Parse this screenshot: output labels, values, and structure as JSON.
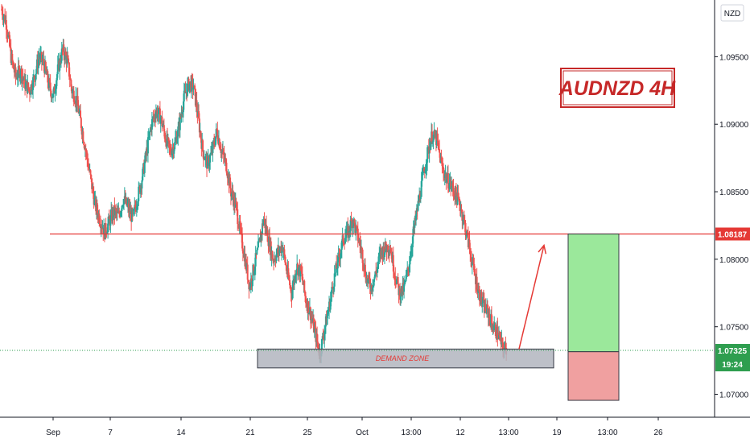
{
  "chart_data": {
    "type": "candlestick",
    "title": "AUDNZD  4H",
    "currency_label": "NZD",
    "ylim": [
      1.0683,
      1.0992
    ],
    "y_ticks": [
      "1.09500",
      "1.09000",
      "1.08500",
      "1.08000",
      "1.07500",
      "1.07000"
    ],
    "x_ticks": [
      "Sep",
      "7",
      "14",
      "21",
      "25",
      "Oct",
      "13:00",
      "12",
      "13:00",
      "19",
      "13:00",
      "26"
    ],
    "gridlines": false,
    "resistance": {
      "value": 1.08187,
      "label": "1.08187"
    },
    "last_price": {
      "value": 1.07325,
      "label": "1.07325",
      "countdown": "19:24"
    },
    "demand_zone": {
      "label": "DEMAND ZONE",
      "upper": 1.07335,
      "lower": 1.07195
    },
    "trade": {
      "entry": 1.07315,
      "target": 1.08187,
      "stop": 1.06955
    },
    "projection": {
      "from": 1.07335,
      "to": 1.08187
    },
    "colors": {
      "up": "#26a69a",
      "down": "#ef5350",
      "resistance": "#e53935",
      "zone_fill": "#b2b5be",
      "profit": "#9be89b",
      "loss": "#f0a0a0",
      "last_price_tag": "#2e9e4f",
      "title": "#c62828"
    },
    "path_points": [
      1.0985,
      1.0975,
      1.095,
      1.0935,
      1.094,
      1.093,
      1.0925,
      1.0935,
      1.095,
      1.0945,
      1.093,
      1.092,
      1.094,
      1.0955,
      1.0948,
      1.0925,
      1.0918,
      1.09,
      1.088,
      1.086,
      1.084,
      1.083,
      1.082,
      1.0828,
      1.0835,
      1.0832,
      1.0845,
      1.0838,
      1.083,
      1.0845,
      1.086,
      1.088,
      1.09,
      1.091,
      1.0905,
      1.089,
      1.088,
      1.0885,
      1.09,
      1.092,
      1.093,
      1.0928,
      1.0905,
      1.088,
      1.087,
      1.088,
      1.0895,
      1.088,
      1.087,
      1.085,
      1.084,
      1.082,
      1.08,
      1.078,
      1.0795,
      1.081,
      1.083,
      1.0815,
      1.08,
      1.0805,
      1.081,
      1.079,
      1.0775,
      1.0795,
      1.079,
      1.077,
      1.076,
      1.0745,
      1.073,
      1.0748,
      1.0765,
      1.0785,
      1.08,
      1.0815,
      1.082,
      1.083,
      1.0818,
      1.0805,
      1.0785,
      1.078,
      1.079,
      1.0805,
      1.0808,
      1.081,
      1.079,
      1.0775,
      1.0778,
      1.0795,
      1.082,
      1.084,
      1.086,
      1.0878,
      1.0892,
      1.0888,
      1.087,
      1.086,
      1.0855,
      1.0848,
      1.084,
      1.0825,
      1.0808,
      1.079,
      1.0775,
      1.0765,
      1.076,
      1.075,
      1.0745,
      1.0735,
      1.0732
    ]
  }
}
